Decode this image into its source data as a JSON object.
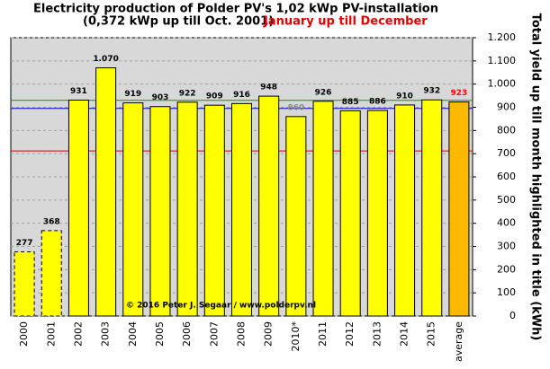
{
  "chart_data": {
    "type": "bar",
    "title": "Electricity production  of Polder  PV's 1,02 kWp PV-installation",
    "subtitle": "(0,372 kWp up till Oct. 2001)",
    "subtitle_highlight": "January up till December",
    "y_label": "Total yield up till month highlighted in title (kWh)",
    "annotation": "© 2016 Peter J. Segaar / www.polderpv.nl",
    "categories": [
      "2000",
      "2001",
      "2002",
      "2003",
      "2004",
      "2005",
      "2006",
      "2007",
      "2008",
      "2009",
      "2010*",
      "2011",
      "2012",
      "2013",
      "2014",
      "2015",
      "average"
    ],
    "values": [
      277,
      368,
      931,
      1070,
      919,
      903,
      922,
      909,
      916,
      948,
      860,
      926,
      885,
      886,
      910,
      932,
      923
    ],
    "value_labels": [
      "277",
      "368",
      "931",
      "1.070",
      "919",
      "903",
      "922",
      "909",
      "916",
      "948",
      "860",
      "926",
      "885",
      "886",
      "910",
      "932",
      "923"
    ],
    "colors": [
      "#ffff00",
      "#ffff00",
      "#ffff00",
      "#ffff00",
      "#ffff00",
      "#ffff00",
      "#ffff00",
      "#ffff00",
      "#ffff00",
      "#ffff00",
      "#ffff00",
      "#ffff00",
      "#ffff00",
      "#ffff00",
      "#ffff00",
      "#ffff00",
      "#ffb800"
    ],
    "label_colors": [
      "#000000",
      "#000000",
      "#000000",
      "#000000",
      "#000000",
      "#000000",
      "#000000",
      "#000000",
      "#000000",
      "#000000",
      "#888888",
      "#000000",
      "#000000",
      "#000000",
      "#000000",
      "#000000",
      "#ff0000"
    ],
    "dashed": [
      true,
      true,
      false,
      false,
      false,
      false,
      false,
      false,
      false,
      false,
      false,
      false,
      false,
      false,
      false,
      false,
      false
    ],
    "reference_lines": [
      {
        "value": 930,
        "color": "#00a000"
      },
      {
        "value": 895,
        "color": "#0000c0"
      },
      {
        "value": 712,
        "color": "#d00000"
      }
    ],
    "ylim": [
      0,
      1200
    ],
    "yticks": [
      0,
      100,
      200,
      300,
      400,
      500,
      600,
      700,
      800,
      900,
      {
        "value": 1000,
        "label": "1.000"
      },
      {
        "value": 1100,
        "label": "1.100"
      },
      {
        "value": 1200,
        "label": "1.200"
      }
    ],
    "grid": true
  }
}
